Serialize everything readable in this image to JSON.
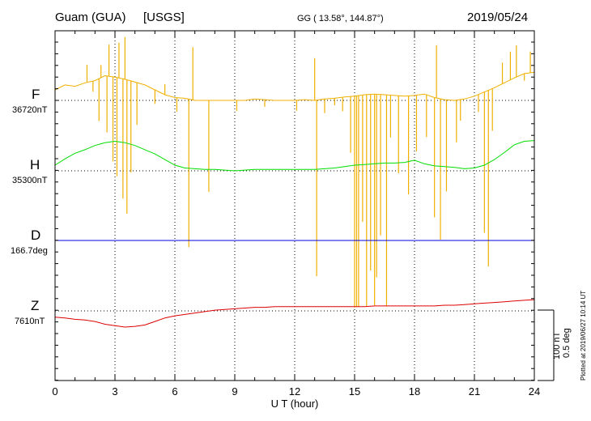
{
  "header": {
    "station": "Guam (GUA)",
    "source": "[USGS]",
    "coords": "GG ( 13.58°, 144.87°)",
    "date": "2019/05/24"
  },
  "side_note": "Plotted at 2019/06/27 10:14 UT",
  "scale_bar": {
    "nt": "100 nT",
    "deg": "0.5 deg"
  },
  "colors": {
    "F": "#f0b000",
    "H": "#00dd00",
    "D": "#0000dd",
    "Z": "#dd0000",
    "axis": "#000000"
  },
  "channels": [
    {
      "key": "F",
      "label": "F",
      "baseline": "36720nT",
      "color": "#f0b000"
    },
    {
      "key": "H",
      "label": "H",
      "baseline": "35300nT",
      "color": "#00dd00"
    },
    {
      "key": "D",
      "label": "D",
      "baseline": "166.7deg",
      "color": "#0000dd"
    },
    {
      "key": "Z",
      "label": "Z",
      "baseline": "7610nT",
      "color": "#dd0000"
    }
  ],
  "chart_data": {
    "type": "line",
    "title": "Guam (GUA) [USGS] 2019/05/24",
    "xlabel": "U T (hour)",
    "xlim": [
      0,
      24
    ],
    "xticks": [
      0,
      3,
      6,
      9,
      12,
      15,
      18,
      21,
      24
    ],
    "grid": true,
    "units": "nT",
    "series": [
      {
        "name": "F",
        "baseline": 36720,
        "x": [
          0,
          0.5,
          1,
          1.5,
          2,
          2.5,
          3,
          3.5,
          4,
          4.5,
          5,
          5.5,
          6,
          6.5,
          7,
          7.5,
          8,
          8.5,
          9,
          9.5,
          10,
          10.5,
          11,
          11.5,
          12,
          12.5,
          13,
          13.5,
          14,
          14.5,
          15,
          15.5,
          16,
          16.5,
          17,
          17.5,
          18,
          18.5,
          19,
          19.5,
          20,
          20.5,
          21,
          21.5,
          22,
          22.5,
          23,
          23.5,
          24
        ],
        "values": [
          15,
          22,
          20,
          25,
          28,
          35,
          33,
          30,
          26,
          22,
          15,
          8,
          4,
          3,
          0,
          0,
          0,
          0,
          0,
          0,
          2,
          1,
          0,
          0,
          0,
          1,
          0,
          2,
          3,
          5,
          6,
          8,
          9,
          8,
          7,
          6,
          7,
          9,
          4,
          1,
          0,
          2,
          6,
          12,
          18,
          25,
          32,
          38,
          40
        ],
        "spikes": [
          [
            1.6,
            25
          ],
          [
            1.9,
            -15
          ],
          [
            2.2,
            -60
          ],
          [
            2.3,
            18
          ],
          [
            2.6,
            -80
          ],
          [
            2.7,
            45
          ],
          [
            2.9,
            -120
          ],
          [
            3.1,
            -140
          ],
          [
            3.2,
            50
          ],
          [
            3.4,
            -170
          ],
          [
            3.5,
            60
          ],
          [
            3.6,
            -190
          ],
          [
            3.8,
            -130
          ],
          [
            4.1,
            -60
          ],
          [
            5.0,
            -20
          ],
          [
            5.5,
            15
          ],
          [
            6.1,
            -20
          ],
          [
            6.7,
            -210
          ],
          [
            6.9,
            75
          ],
          [
            7.7,
            -130
          ],
          [
            9.1,
            -15
          ],
          [
            10.5,
            -10
          ],
          [
            12.1,
            -15
          ],
          [
            13.0,
            60
          ],
          [
            13.1,
            -250
          ],
          [
            13.5,
            -20
          ],
          [
            14.0,
            -10
          ],
          [
            14.4,
            -20
          ],
          [
            14.8,
            -80
          ],
          [
            15.0,
            -300
          ],
          [
            15.1,
            -300
          ],
          [
            15.2,
            -300
          ],
          [
            15.4,
            -180
          ],
          [
            15.6,
            -300
          ],
          [
            15.8,
            -250
          ],
          [
            16.0,
            -300
          ],
          [
            16.1,
            -260
          ],
          [
            16.3,
            -200
          ],
          [
            16.6,
            -300
          ],
          [
            16.8,
            -60
          ],
          [
            17.2,
            -110
          ],
          [
            17.7,
            -140
          ],
          [
            18.1,
            -80
          ],
          [
            18.6,
            -60
          ],
          [
            19.0,
            -170
          ],
          [
            19.1,
            75
          ],
          [
            19.3,
            -200
          ],
          [
            19.6,
            -130
          ],
          [
            20.1,
            -60
          ],
          [
            20.3,
            -30
          ],
          [
            21.2,
            -25
          ],
          [
            21.5,
            -200
          ],
          [
            21.7,
            -250
          ],
          [
            21.9,
            -60
          ],
          [
            22.4,
            30
          ],
          [
            22.8,
            40
          ],
          [
            23.1,
            45
          ],
          [
            23.5,
            -10
          ],
          [
            23.8,
            30
          ]
        ]
      },
      {
        "name": "H",
        "baseline": 35300,
        "x": [
          0,
          0.5,
          1,
          1.5,
          2,
          2.5,
          3,
          3.5,
          4,
          4.5,
          5,
          5.5,
          6,
          6.5,
          7,
          7.5,
          8,
          8.5,
          9,
          9.5,
          10,
          10.5,
          11,
          11.5,
          12,
          12.5,
          13,
          13.5,
          14,
          14.5,
          15,
          15.5,
          16,
          16.5,
          17,
          17.5,
          18,
          18.5,
          19,
          19.5,
          20,
          20.5,
          21,
          21.5,
          22,
          22.5,
          23,
          23.5,
          24
        ],
        "values": [
          8,
          17,
          25,
          30,
          36,
          40,
          42,
          40,
          36,
          30,
          24,
          16,
          8,
          4,
          3,
          2,
          2,
          1,
          0,
          1,
          2,
          2,
          2,
          2,
          2,
          2,
          2,
          3,
          4,
          6,
          8,
          9,
          10,
          11,
          11,
          12,
          15,
          10,
          7,
          6,
          5,
          3,
          4,
          8,
          16,
          26,
          37,
          42,
          43
        ]
      },
      {
        "name": "D",
        "baseline": 166.7,
        "x": [
          0,
          6,
          12,
          18,
          24
        ],
        "values": [
          0,
          0,
          0,
          0,
          0
        ]
      },
      {
        "name": "Z",
        "baseline": 7610,
        "x": [
          0,
          0.5,
          1,
          1.5,
          2,
          2.5,
          3,
          3.5,
          4,
          4.5,
          5,
          5.5,
          6,
          6.5,
          7,
          7.5,
          8,
          8.5,
          9,
          9.5,
          10,
          10.5,
          11,
          11.5,
          12,
          12.5,
          13,
          13.5,
          14,
          14.5,
          15,
          15.5,
          16,
          16.5,
          17,
          17.5,
          18,
          18.5,
          19,
          19.5,
          20,
          20.5,
          21,
          21.5,
          22,
          22.5,
          23,
          23.5,
          24
        ],
        "values": [
          -9,
          -10,
          -12,
          -13,
          -15,
          -19,
          -21,
          -23,
          -22,
          -20,
          -15,
          -10,
          -7,
          -5,
          -3,
          -1,
          1,
          2,
          3,
          4,
          5,
          5,
          6,
          6,
          6,
          6,
          6,
          6,
          6,
          6,
          6,
          6,
          7,
          7,
          7,
          7,
          7,
          7,
          7,
          8,
          8,
          9,
          10,
          11,
          12,
          13,
          14,
          15,
          16
        ]
      }
    ]
  }
}
